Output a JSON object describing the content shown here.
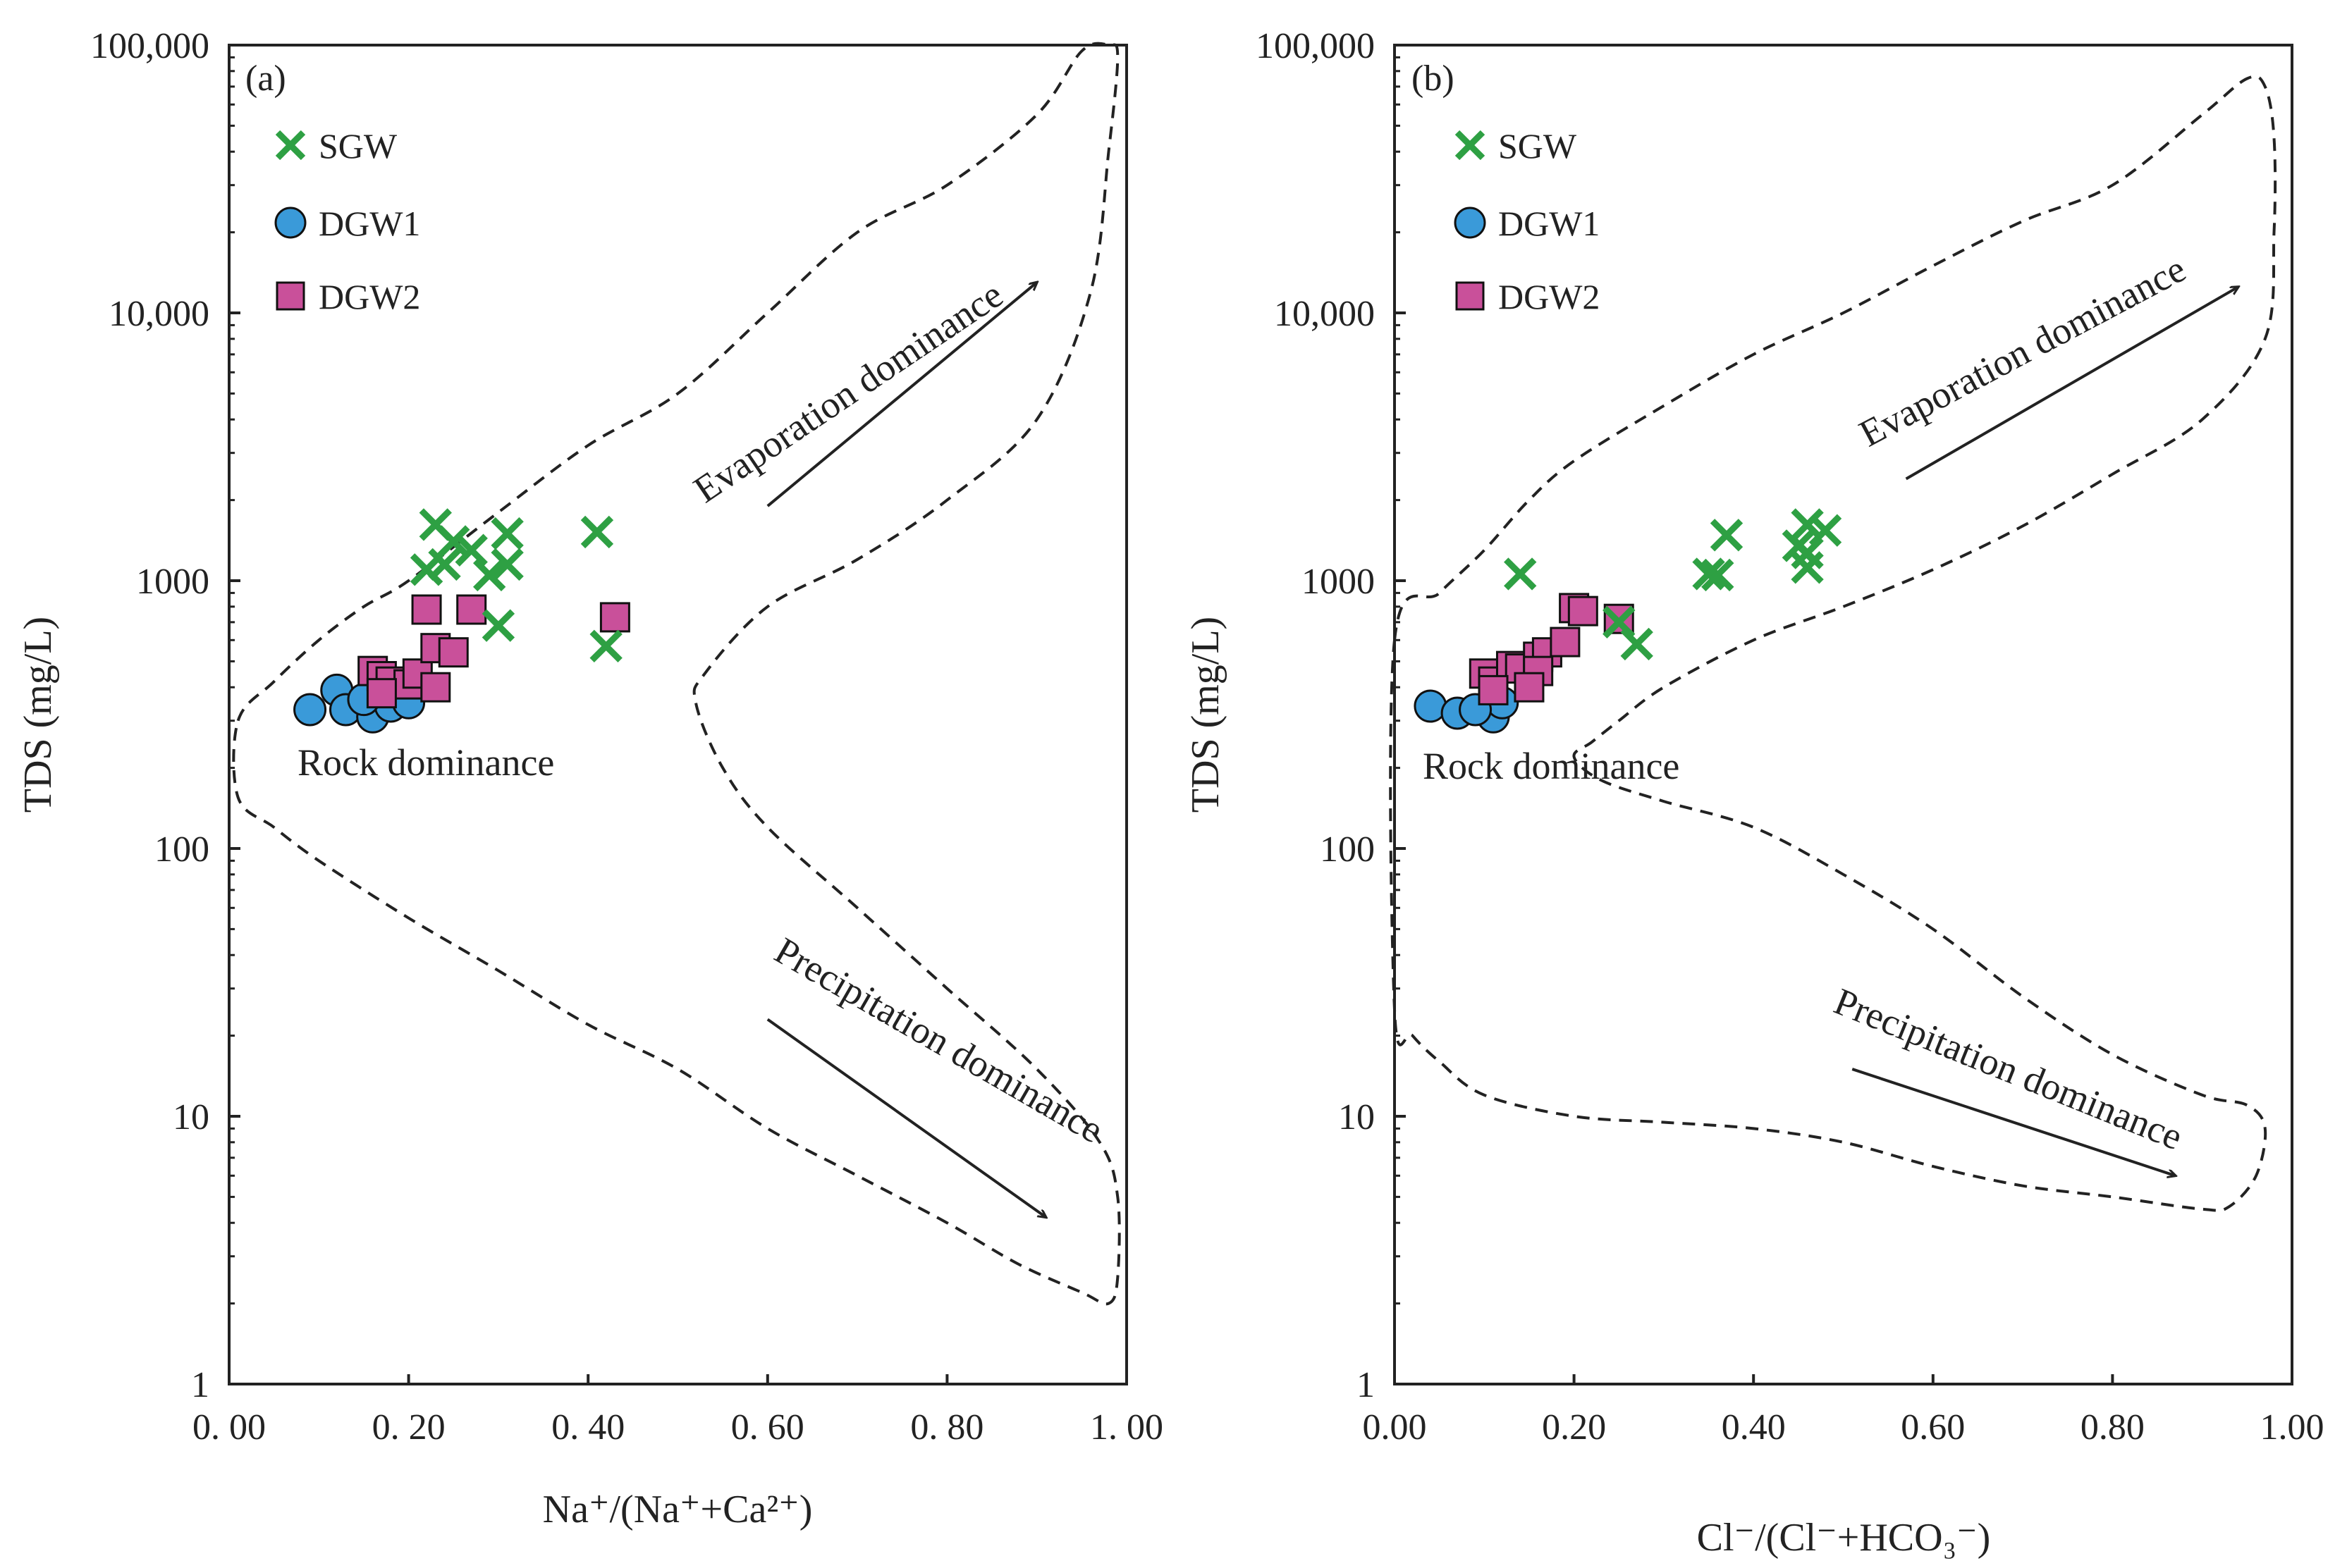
{
  "colors": {
    "sgw": "#2ea043",
    "dgw1": "#3a9ad9",
    "dgw2": "#c9509a",
    "outline": "#111111"
  },
  "legend": [
    {
      "key": "sgw",
      "label": "SGW",
      "shape": "cross"
    },
    {
      "key": "dgw1",
      "label": "DGW1",
      "shape": "circle"
    },
    {
      "key": "dgw2",
      "label": "DGW2",
      "shape": "square"
    }
  ],
  "chart_data": [
    {
      "type": "scatter",
      "panel_label": "(a)",
      "xlabel": "Na⁺/(Na⁺+Ca²⁺)",
      "ylabel": "TDS (mg/L)",
      "xlim": [
        0,
        1
      ],
      "ylim": [
        1,
        100000
      ],
      "yscale": "log",
      "x_tick_labels": [
        "0. 00",
        "0. 20",
        "0. 40",
        "0. 60",
        "0. 80",
        "1. 00"
      ],
      "x_ticks": [
        0,
        0.2,
        0.4,
        0.6,
        0.8,
        1.0
      ],
      "y_tick_labels": [
        "1",
        "10",
        "100",
        "1000",
        "10,000",
        "100,000"
      ],
      "y_ticks": [
        1,
        10,
        100,
        1000,
        10000,
        100000
      ],
      "annotations": {
        "evaporation": "Evaporation dominance",
        "rock": "Rock dominance",
        "precipitation": "Precipitation dominance"
      },
      "series": [
        {
          "key": "sgw",
          "name": "SGW",
          "points": [
            [
              0.23,
              1620
            ],
            [
              0.25,
              1400
            ],
            [
              0.27,
              1300
            ],
            [
              0.22,
              1100
            ],
            [
              0.24,
              1150
            ],
            [
              0.29,
              1050
            ],
            [
              0.31,
              1500
            ],
            [
              0.31,
              1150
            ],
            [
              0.3,
              680
            ],
            [
              0.41,
              1520
            ],
            [
              0.42,
              570
            ]
          ]
        },
        {
          "key": "dgw1",
          "name": "DGW1",
          "points": [
            [
              0.09,
              330
            ],
            [
              0.12,
              390
            ],
            [
              0.13,
              330
            ],
            [
              0.16,
              310
            ],
            [
              0.18,
              340
            ],
            [
              0.2,
              350
            ],
            [
              0.15,
              360
            ]
          ]
        },
        {
          "key": "dgw2",
          "name": "DGW2",
          "points": [
            [
              0.22,
              780
            ],
            [
              0.27,
              780
            ],
            [
              0.16,
              460
            ],
            [
              0.17,
              440
            ],
            [
              0.18,
              420
            ],
            [
              0.2,
              410
            ],
            [
              0.21,
              450
            ],
            [
              0.23,
              560
            ],
            [
              0.25,
              540
            ],
            [
              0.23,
              400
            ],
            [
              0.17,
              380
            ],
            [
              0.43,
              730
            ]
          ]
        }
      ],
      "boundary": [
        [
          0.01,
          300
        ],
        [
          0.05,
          420
        ],
        [
          0.1,
          600
        ],
        [
          0.15,
          800
        ],
        [
          0.2,
          1000
        ],
        [
          0.3,
          1800
        ],
        [
          0.4,
          3200
        ],
        [
          0.5,
          5000
        ],
        [
          0.6,
          10000
        ],
        [
          0.7,
          20000
        ],
        [
          0.8,
          30000
        ],
        [
          0.9,
          55000
        ],
        [
          0.95,
          95000
        ],
        [
          0.98,
          100000
        ],
        [
          0.99,
          90000
        ],
        [
          0.98,
          40000
        ],
        [
          0.96,
          12000
        ],
        [
          0.9,
          4000
        ],
        [
          0.8,
          2000
        ],
        [
          0.7,
          1200
        ],
        [
          0.6,
          800
        ],
        [
          0.53,
          450
        ],
        [
          0.52,
          350
        ],
        [
          0.55,
          200
        ],
        [
          0.6,
          120
        ],
        [
          0.7,
          60
        ],
        [
          0.8,
          30
        ],
        [
          0.9,
          15
        ],
        [
          0.97,
          8
        ],
        [
          0.99,
          5
        ],
        [
          0.99,
          2.5
        ],
        [
          0.98,
          2
        ],
        [
          0.95,
          2.2
        ],
        [
          0.88,
          2.8
        ],
        [
          0.8,
          4
        ],
        [
          0.7,
          6
        ],
        [
          0.6,
          9
        ],
        [
          0.5,
          15
        ],
        [
          0.4,
          22
        ],
        [
          0.3,
          35
        ],
        [
          0.2,
          55
        ],
        [
          0.1,
          90
        ],
        [
          0.05,
          120
        ],
        [
          0.01,
          155
        ]
      ],
      "arrows": {
        "evaporation": [
          [
            0.6,
            1900
          ],
          [
            0.9,
            13000
          ]
        ],
        "precipitation": [
          [
            0.6,
            23
          ],
          [
            0.91,
            4.2
          ]
        ]
      }
    },
    {
      "type": "scatter",
      "panel_label": "(b)",
      "xlabel": "Cl⁻/(Cl⁻+HCO₃⁻)",
      "ylabel": "TDS (mg/L)",
      "xlim": [
        0,
        1
      ],
      "ylim": [
        1,
        100000
      ],
      "yscale": "log",
      "x_tick_labels": [
        "0.00",
        "0.20",
        "0.40",
        "0.60",
        "0.80",
        "1.00"
      ],
      "x_ticks": [
        0,
        0.2,
        0.4,
        0.6,
        0.8,
        1.0
      ],
      "y_tick_labels": [
        "1",
        "10",
        "100",
        "1000",
        "10,000",
        "100,000"
      ],
      "y_ticks": [
        1,
        10,
        100,
        1000,
        10000,
        100000
      ],
      "annotations": {
        "evaporation": "Evaporation dominance",
        "rock": "Rock dominance",
        "precipitation": "Precipitation dominance"
      },
      "series": [
        {
          "key": "sgw",
          "name": "SGW",
          "points": [
            [
              0.14,
              1060
            ],
            [
              0.35,
              1060
            ],
            [
              0.36,
              1050
            ],
            [
              0.37,
              1480
            ],
            [
              0.45,
              1350
            ],
            [
              0.46,
              1620
            ],
            [
              0.46,
              1270
            ],
            [
              0.46,
              1120
            ],
            [
              0.48,
              1540
            ],
            [
              0.25,
              700
            ],
            [
              0.27,
              580
            ]
          ]
        },
        {
          "key": "dgw1",
          "name": "DGW1",
          "points": [
            [
              0.04,
              340
            ],
            [
              0.07,
              320
            ],
            [
              0.11,
              310
            ],
            [
              0.12,
              350
            ],
            [
              0.09,
              330
            ]
          ]
        },
        {
          "key": "dgw2",
          "name": "DGW2",
          "points": [
            [
              0.2,
              790
            ],
            [
              0.21,
              770
            ],
            [
              0.25,
              720
            ],
            [
              0.1,
              450
            ],
            [
              0.11,
              420
            ],
            [
              0.13,
              480
            ],
            [
              0.14,
              470
            ],
            [
              0.16,
              520
            ],
            [
              0.17,
              540
            ],
            [
              0.19,
              590
            ],
            [
              0.16,
              460
            ],
            [
              0.15,
              400
            ],
            [
              0.11,
              390
            ]
          ]
        }
      ],
      "boundary": [
        [
          0,
          600
        ],
        [
          0.05,
          900
        ],
        [
          0.1,
          1300
        ],
        [
          0.15,
          2000
        ],
        [
          0.2,
          2800
        ],
        [
          0.3,
          4500
        ],
        [
          0.4,
          7000
        ],
        [
          0.5,
          10000
        ],
        [
          0.6,
          15000
        ],
        [
          0.7,
          22000
        ],
        [
          0.8,
          30000
        ],
        [
          0.9,
          55000
        ],
        [
          0.95,
          75000
        ],
        [
          0.97,
          70000
        ],
        [
          0.98,
          45000
        ],
        [
          0.98,
          20000
        ],
        [
          0.97,
          8000
        ],
        [
          0.9,
          4000
        ],
        [
          0.8,
          2500
        ],
        [
          0.7,
          1600
        ],
        [
          0.6,
          1100
        ],
        [
          0.5,
          800
        ],
        [
          0.4,
          600
        ],
        [
          0.3,
          400
        ],
        [
          0.25,
          300
        ],
        [
          0.22,
          250
        ],
        [
          0.2,
          220
        ],
        [
          0.23,
          180
        ],
        [
          0.3,
          150
        ],
        [
          0.4,
          120
        ],
        [
          0.5,
          80
        ],
        [
          0.6,
          50
        ],
        [
          0.7,
          28
        ],
        [
          0.8,
          17
        ],
        [
          0.9,
          12
        ],
        [
          0.95,
          11
        ],
        [
          0.97,
          9
        ],
        [
          0.96,
          6
        ],
        [
          0.93,
          4.6
        ],
        [
          0.9,
          4.5
        ],
        [
          0.8,
          5
        ],
        [
          0.7,
          5.5
        ],
        [
          0.6,
          6.5
        ],
        [
          0.5,
          8
        ],
        [
          0.4,
          9
        ],
        [
          0.3,
          9.5
        ],
        [
          0.2,
          10
        ],
        [
          0.1,
          12
        ],
        [
          0.05,
          16
        ],
        [
          0.02,
          20
        ],
        [
          0,
          25
        ]
      ],
      "arrows": {
        "evaporation": [
          [
            0.57,
            2400
          ],
          [
            0.94,
            12500
          ]
        ],
        "precipitation": [
          [
            0.51,
            15
          ],
          [
            0.87,
            6
          ]
        ]
      }
    }
  ]
}
